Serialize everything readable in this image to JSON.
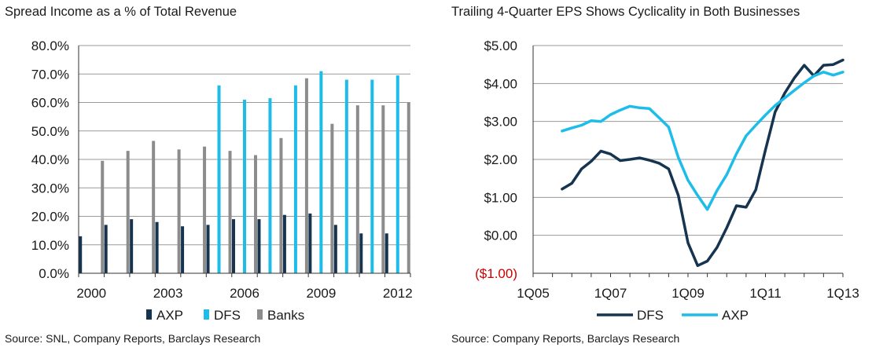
{
  "chart_data": [
    {
      "type": "bar",
      "title": "Spread Income as a % of Total Revenue",
      "source": "Source: SNL, Company Reports, Barclays Research",
      "categories": [
        "2000",
        "2001",
        "2002",
        "2003",
        "2004",
        "2005",
        "2006",
        "2007",
        "2008",
        "2009",
        "2010",
        "2011",
        "2012"
      ],
      "x_tick_labels": [
        "2000",
        "",
        "",
        "2003",
        "",
        "",
        "2006",
        "",
        "",
        "2009",
        "",
        "",
        "2012"
      ],
      "y_tick_labels": [
        "0.0%",
        "10.0%",
        "20.0%",
        "30.0%",
        "40.0%",
        "50.0%",
        "60.0%",
        "70.0%",
        "80.0%"
      ],
      "ylim": [
        0,
        80
      ],
      "series": [
        {
          "name": "AXP",
          "color": "#16344f",
          "values": [
            13,
            17,
            19,
            18,
            16.5,
            17,
            19,
            19,
            20.5,
            21,
            17,
            14,
            14
          ]
        },
        {
          "name": "DFS",
          "color": "#1ebde9",
          "values": [
            null,
            null,
            null,
            null,
            null,
            66,
            61,
            61.5,
            66,
            71,
            68,
            68,
            69.5
          ]
        },
        {
          "name": "Banks",
          "color": "#8c8c8c",
          "values": [
            39.5,
            43,
            46.5,
            43.5,
            44.5,
            43,
            41.5,
            47.5,
            68.5,
            52.5,
            59,
            59,
            60
          ]
        }
      ],
      "legend": "bottom",
      "grid": "horizontal"
    },
    {
      "type": "line",
      "title": "Trailing 4-Quarter EPS Shows Cyclicality in Both Businesses",
      "source": "Source: Company Reports, Barclays Research",
      "x_tick_labels": [
        "1Q05",
        "1Q07",
        "1Q09",
        "1Q11",
        "1Q13"
      ],
      "x_tick_quarters": [
        0,
        8,
        16,
        24,
        32
      ],
      "xlim": [
        0,
        32
      ],
      "ylim": [
        -1,
        5
      ],
      "y_tick_labels": [
        "($1.00)",
        "$0.00",
        "$1.00",
        "$2.00",
        "$3.00",
        "$4.00",
        "$5.00"
      ],
      "y_tick_colors": [
        "#cc0000",
        "#1a1a1a",
        "#1a1a1a",
        "#1a1a1a",
        "#1a1a1a",
        "#1a1a1a",
        "#1a1a1a"
      ],
      "series": [
        {
          "name": "DFS",
          "color": "#16344f",
          "x": [
            3,
            4,
            5,
            6,
            7,
            8,
            9,
            10,
            11,
            12,
            13,
            14,
            15,
            16,
            17,
            18,
            19,
            20,
            21,
            22,
            23,
            24,
            25,
            26,
            27,
            28,
            29,
            30,
            31,
            32
          ],
          "y": [
            1.22,
            1.37,
            1.75,
            1.95,
            2.22,
            2.14,
            1.97,
            2.0,
            2.04,
            1.98,
            1.9,
            1.75,
            1.05,
            -0.2,
            -0.8,
            -0.68,
            -0.32,
            0.2,
            0.78,
            0.74,
            1.2,
            2.25,
            3.25,
            3.75,
            4.15,
            4.48,
            4.2,
            4.48,
            4.5,
            4.62
          ]
        },
        {
          "name": "AXP",
          "color": "#1ebde9",
          "x": [
            3,
            4,
            5,
            6,
            7,
            8,
            9,
            10,
            11,
            12,
            13,
            14,
            15,
            16,
            17,
            18,
            19,
            20,
            21,
            22,
            23,
            24,
            25,
            26,
            27,
            28,
            29,
            30,
            31,
            32
          ],
          "y": [
            2.75,
            2.83,
            2.9,
            3.02,
            3.0,
            3.18,
            3.3,
            3.4,
            3.36,
            3.34,
            3.1,
            2.85,
            2.05,
            1.45,
            1.05,
            0.68,
            1.18,
            1.6,
            2.15,
            2.62,
            2.9,
            3.17,
            3.42,
            3.62,
            3.82,
            4.02,
            4.2,
            4.3,
            4.22,
            4.3
          ]
        }
      ],
      "legend": "bottom",
      "grid": "horizontal"
    }
  ]
}
